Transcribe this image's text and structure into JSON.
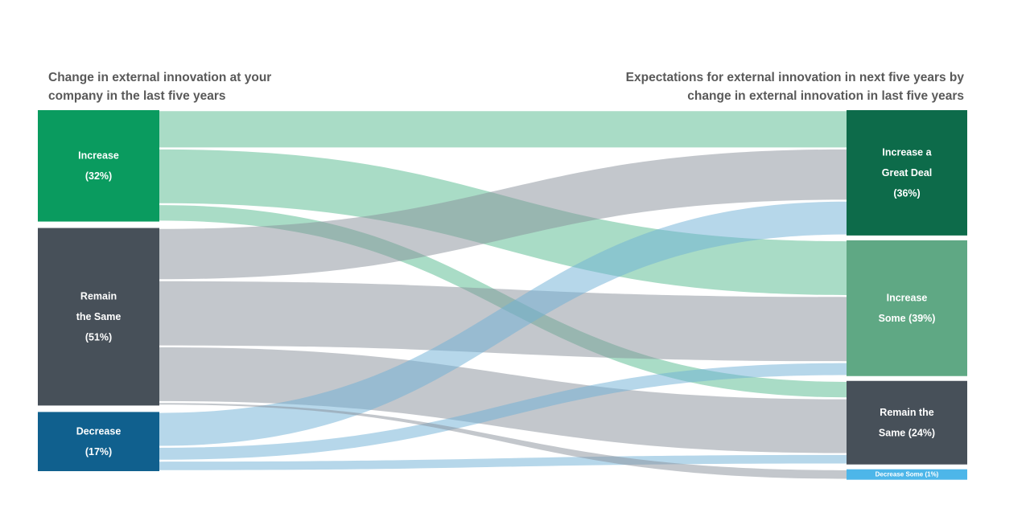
{
  "chart_data": {
    "type": "sankey",
    "left_title": "Change in external innovation at your company in the last five years",
    "right_title": "Expectations for external innovation in next five years by change in external innovation in last five years",
    "title_color": "#595959",
    "background_color": "#ffffff",
    "units": "percent of respondents",
    "sources": [
      {
        "id": "increase",
        "label": "Increase (32%)",
        "label_lines": [
          "Increase",
          "(32%)"
        ],
        "value": 32,
        "node_color": "#0a9b5f",
        "flow_color": "#53b98d"
      },
      {
        "id": "remain-the-same",
        "label": "Remain the Same (51%)",
        "label_lines": [
          "Remain",
          "the Same",
          "(51%)"
        ],
        "value": 51,
        "node_color": "#475059",
        "flow_color": "#878f99"
      },
      {
        "id": "decrease",
        "label": "Decrease (17%)",
        "label_lines": [
          "Decrease",
          "(17%)"
        ],
        "value": 17,
        "node_color": "#10608e",
        "flow_color": "#6dafd5"
      }
    ],
    "targets": [
      {
        "id": "increase-a-great-deal",
        "label": "Increase a Great Deal (36%)",
        "label_lines": [
          "Increase a",
          "Great Deal",
          "(36%)"
        ],
        "value": 36,
        "node_color": "#0d6b4a",
        "small": false
      },
      {
        "id": "increase-some",
        "label": "Increase Some (39%)",
        "label_lines": [
          "Increase",
          "Some (39%)"
        ],
        "value": 39,
        "node_color": "#5fa884",
        "small": false
      },
      {
        "id": "remain-the-same",
        "label": "Remain the Same (24%)",
        "label_lines": [
          "Remain the",
          "Same (24%)"
        ],
        "value": 24,
        "node_color": "#475059",
        "small": false
      },
      {
        "id": "decrease-some",
        "label": "Decrease Some (1%)",
        "label_lines": [
          "Decrease Some (1%)"
        ],
        "value": 1,
        "node_color": "#4db6e9",
        "small": true
      }
    ],
    "flows": [
      {
        "source": 0,
        "target": 0,
        "value": 11
      },
      {
        "source": 0,
        "target": 1,
        "value": 16
      },
      {
        "source": 0,
        "target": 2,
        "value": 5
      },
      {
        "source": 1,
        "target": 0,
        "value": 15
      },
      {
        "source": 1,
        "target": 1,
        "value": 19
      },
      {
        "source": 1,
        "target": 2,
        "value": 16
      },
      {
        "source": 1,
        "target": 3,
        "value": 1
      },
      {
        "source": 2,
        "target": 0,
        "value": 10
      },
      {
        "source": 2,
        "target": 1,
        "value": 4
      },
      {
        "source": 2,
        "target": 2,
        "value": 3
      }
    ]
  }
}
